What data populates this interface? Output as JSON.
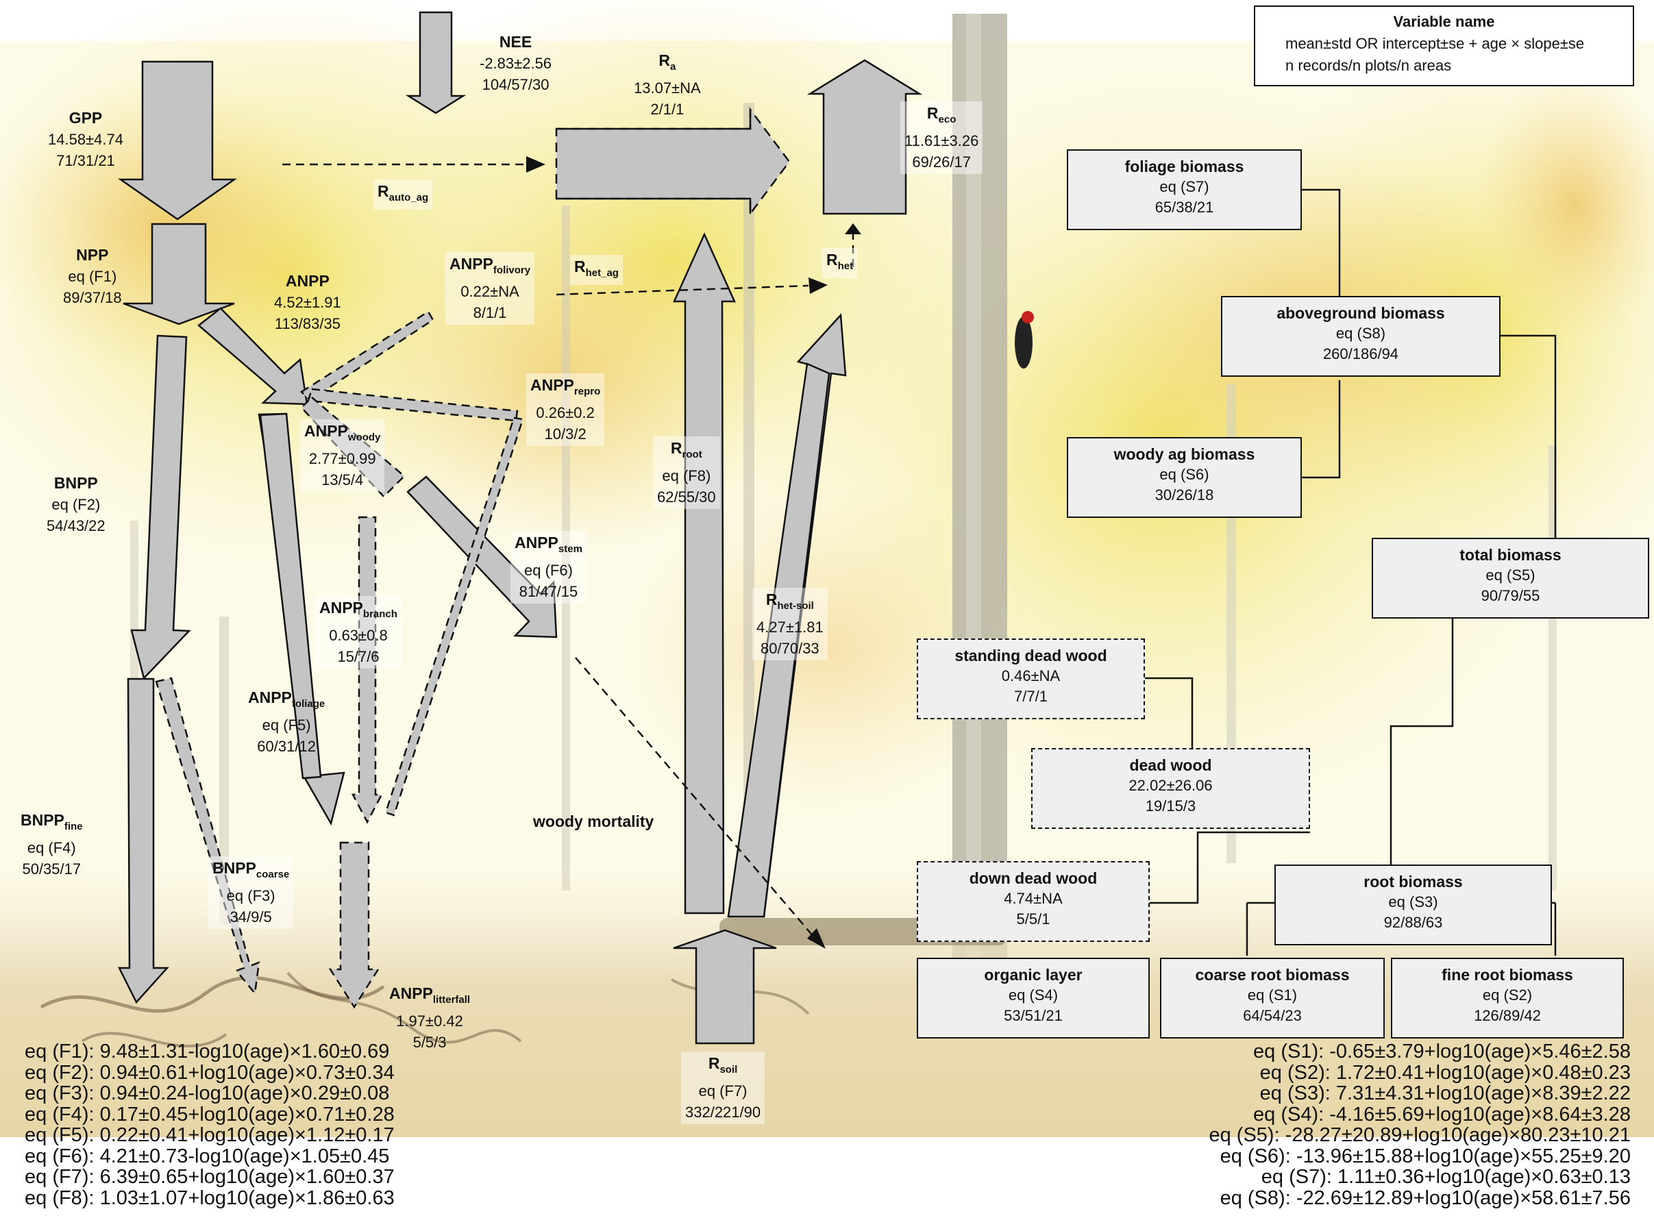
{
  "legend": {
    "title": "Variable name",
    "line1": "mean±std OR intercept±se + age × slope±se",
    "line2": "n records/n plots/n areas"
  },
  "fluxes": {
    "nee": {
      "name": "NEE",
      "value": "-2.83±2.56",
      "n": "104/57/30"
    },
    "gpp": {
      "name": "GPP",
      "value": "14.58±4.74",
      "n": "71/31/21"
    },
    "ra": {
      "name": "R",
      "sub": "a",
      "value": "13.07±NA",
      "n": "2/1/1"
    },
    "reco": {
      "name": "R",
      "sub": "eco",
      "value": "11.61±3.26",
      "n": "69/26/17"
    },
    "rauto_ag": {
      "name": "R",
      "sub": "auto_ag"
    },
    "npp": {
      "name": "NPP",
      "value": "eq (F1)",
      "n": "89/37/18"
    },
    "anpp": {
      "name": "ANPP",
      "value": "4.52±1.91",
      "n": "113/83/35"
    },
    "anpp_folivory": {
      "name": "ANPP",
      "sub": "folivory",
      "value": "0.22±NA",
      "n": "8/1/1"
    },
    "rhet_ag": {
      "name": "R",
      "sub": "het_ag"
    },
    "rhet": {
      "name": "R",
      "sub": "het"
    },
    "anpp_repro": {
      "name": "ANPP",
      "sub": "repro",
      "value": "0.26±0.2",
      "n": "10/3/2"
    },
    "anpp_woody": {
      "name": "ANPP",
      "sub": "woody",
      "value": "2.77±0.99",
      "n": "13/5/4"
    },
    "bnpp": {
      "name": "BNPP",
      "value": "eq (F2)",
      "n": "54/43/22"
    },
    "rroot": {
      "name": "R",
      "sub": "root",
      "value": "eq (F8)",
      "n": "62/55/30"
    },
    "anpp_stem": {
      "name": "ANPP",
      "sub": "stem",
      "value": "eq (F6)",
      "n": "81/47/15"
    },
    "rhet_soil": {
      "name": "R",
      "sub": "het-soil",
      "value": "4.27±1.81",
      "n": "80/70/33"
    },
    "anpp_branch": {
      "name": "ANPP",
      "sub": "branch",
      "value": "0.63±0.8",
      "n": "15/7/6"
    },
    "anpp_foliage": {
      "name": "ANPP",
      "sub": "foliage",
      "value": "eq (F5)",
      "n": "60/31/12"
    },
    "woody_mortality": {
      "name": "woody mortality"
    },
    "bnpp_fine": {
      "name": "BNPP",
      "sub": "fine",
      "value": "eq (F4)",
      "n": "50/35/17"
    },
    "bnpp_coarse": {
      "name": "BNPP",
      "sub": "coarse",
      "value": "eq (F3)",
      "n": "34/9/5"
    },
    "anpp_litterfall": {
      "name": "ANPP",
      "sub": "litterfall",
      "value": "1.97±0.42",
      "n": "5/5/3"
    },
    "rsoil": {
      "name": "R",
      "sub": "soil",
      "value": "eq (F7)",
      "n": "332/221/90"
    }
  },
  "stocks": {
    "foliage": {
      "name": "foliage biomass",
      "value": "eq (S7)",
      "n": "65/38/21"
    },
    "aboveground": {
      "name": "aboveground biomass",
      "value": "eq (S8)",
      "n": "260/186/94"
    },
    "woody_ag": {
      "name": "woody ag biomass",
      "value": "eq (S6)",
      "n": "30/26/18"
    },
    "total": {
      "name": "total biomass",
      "value": "eq (S5)",
      "n": "90/79/55"
    },
    "standing_dead": {
      "name": "standing dead wood",
      "value": "0.46±NA",
      "n": "7/7/1"
    },
    "dead_wood": {
      "name": "dead wood",
      "value": "22.02±26.06",
      "n": "19/15/3"
    },
    "down_dead": {
      "name": "down dead wood",
      "value": "4.74±NA",
      "n": "5/5/1"
    },
    "root": {
      "name": "root biomass",
      "value": "eq (S3)",
      "n": "92/88/63"
    },
    "organic": {
      "name": "organic layer",
      "value": "eq (S4)",
      "n": "53/51/21"
    },
    "coarse_root": {
      "name": "coarse root biomass",
      "value": "eq (S1)",
      "n": "64/54/23"
    },
    "fine_root": {
      "name": "fine root biomass",
      "value": "eq (S2)",
      "n": "126/89/42"
    }
  },
  "flux_equations": [
    "eq (F1): 9.48±1.31-log10(age)×1.60±0.69",
    "eq (F2): 0.94±0.61+log10(age)×0.73±0.34",
    "eq (F3): 0.94±0.24-log10(age)×0.29±0.08",
    "eq (F4): 0.17±0.45+log10(age)×0.71±0.28",
    "eq (F5): 0.22±0.41+log10(age)×1.12±0.17",
    "eq (F6): 4.21±0.73-log10(age)×1.05±0.45",
    "eq (F7): 6.39±0.65+log10(age)×1.60±0.37",
    "eq (F8): 1.03±1.07+log10(age)×1.86±0.63"
  ],
  "stock_equations": [
    "eq (S1): -0.65±3.79+log10(age)×5.46±2.58",
    "eq (S2): 1.72±0.41+log10(age)×0.48±0.23",
    "eq (S3): 7.31±4.31+log10(age)×8.39±2.22",
    "eq (S4): -4.16±5.69+log10(age)×8.64±3.28",
    "eq (S5): -28.27±20.89+log10(age)×80.23±10.21",
    "eq (S6): -13.96±15.88+log10(age)×55.25±9.20",
    "eq (S7): 1.11±0.36+log10(age)×0.63±0.13",
    "eq (S8): -22.69±12.89+log10(age)×58.61±7.56"
  ]
}
